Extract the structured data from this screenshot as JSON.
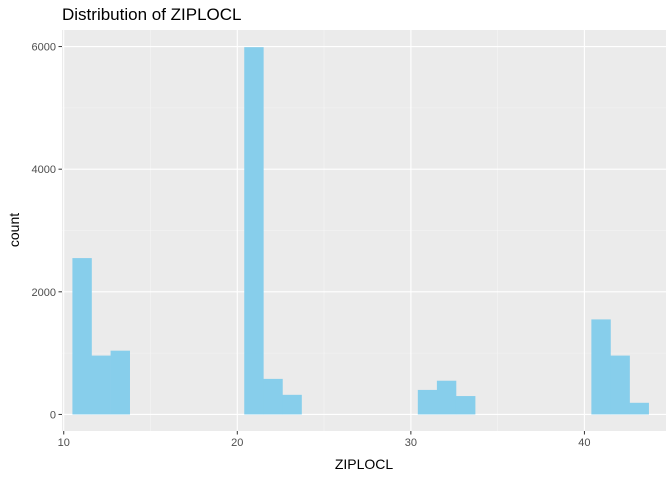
{
  "chart_data": {
    "type": "histogram",
    "title": "Distribution of ZIPLOCL",
    "xlabel": "ZIPLOCL",
    "ylabel": "count",
    "xlim": [
      9.9,
      44.7
    ],
    "ylim": [
      -270,
      6270
    ],
    "x_ticks": [
      10,
      20,
      30,
      40
    ],
    "y_ticks": [
      0,
      2000,
      4000,
      6000
    ],
    "x_tick_labels": [
      "10",
      "20",
      "30",
      "40"
    ],
    "y_tick_labels": [
      "0",
      "2000",
      "4000",
      "6000"
    ],
    "bin_width": 1.1,
    "bins": [
      {
        "x0": 10.5,
        "x1": 11.6,
        "count": 2550
      },
      {
        "x0": 11.6,
        "x1": 12.7,
        "count": 960
      },
      {
        "x0": 12.7,
        "x1": 13.8,
        "count": 1040
      },
      {
        "x0": 20.4,
        "x1": 21.5,
        "count": 5990
      },
      {
        "x0": 21.5,
        "x1": 22.6,
        "count": 580
      },
      {
        "x0": 22.6,
        "x1": 23.7,
        "count": 320
      },
      {
        "x0": 30.4,
        "x1": 31.5,
        "count": 400
      },
      {
        "x0": 31.5,
        "x1": 32.6,
        "count": 550
      },
      {
        "x0": 32.6,
        "x1": 33.7,
        "count": 300
      },
      {
        "x0": 40.4,
        "x1": 41.5,
        "count": 1550
      },
      {
        "x0": 41.5,
        "x1": 42.6,
        "count": 960
      },
      {
        "x0": 42.6,
        "x1": 43.7,
        "count": 190
      }
    ],
    "grid": true,
    "colors": {
      "bar": "#87ceeb",
      "panel": "#ebebeb",
      "grid_major": "#ffffff",
      "grid_minor": "#f5f5f5",
      "tick_text": "#4d4d4d",
      "tick_line": "#333333"
    }
  }
}
